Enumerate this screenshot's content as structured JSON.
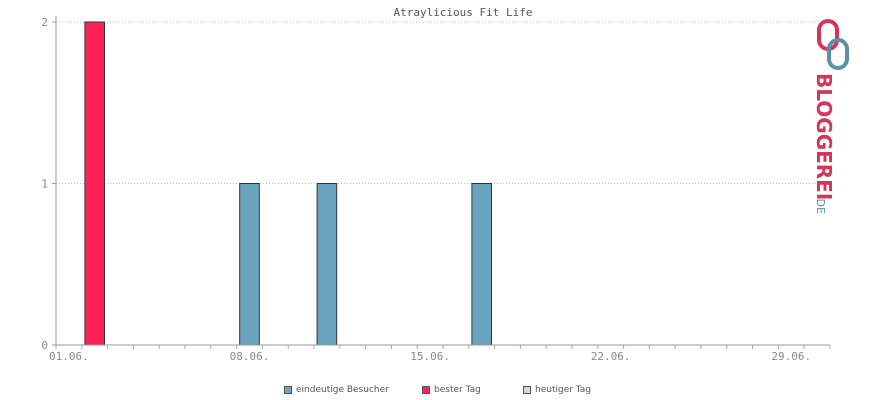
{
  "chart_data": {
    "type": "bar",
    "title": "Atraylicious Fit Life",
    "x_tick_labels": [
      "01.06.",
      "08.06.",
      "15.06.",
      "22.06.",
      "29.06."
    ],
    "y_tick_labels": [
      "0",
      "1",
      "2"
    ],
    "ylim": [
      0,
      2
    ],
    "x_start_day": 1,
    "x_end_day": 30,
    "grid": true,
    "legend_position": "bottom",
    "series": [
      {
        "name": "eindeutige Besucher",
        "color": "#6aa3bd",
        "points": [
          {
            "day": 8,
            "value": 1
          },
          {
            "day": 11,
            "value": 1
          },
          {
            "day": 17,
            "value": 1
          }
        ]
      },
      {
        "name": "bester Tag",
        "color": "#ff2157",
        "points": [
          {
            "day": 2,
            "value": 2
          }
        ]
      },
      {
        "name": "heutiger Tag",
        "color": "#d8d8d8",
        "points": []
      }
    ]
  },
  "logo": {
    "text": "BLOGGEREI",
    "suffix": ".DE",
    "accent": "#d7345a",
    "secondary": "#5d8fa8"
  }
}
